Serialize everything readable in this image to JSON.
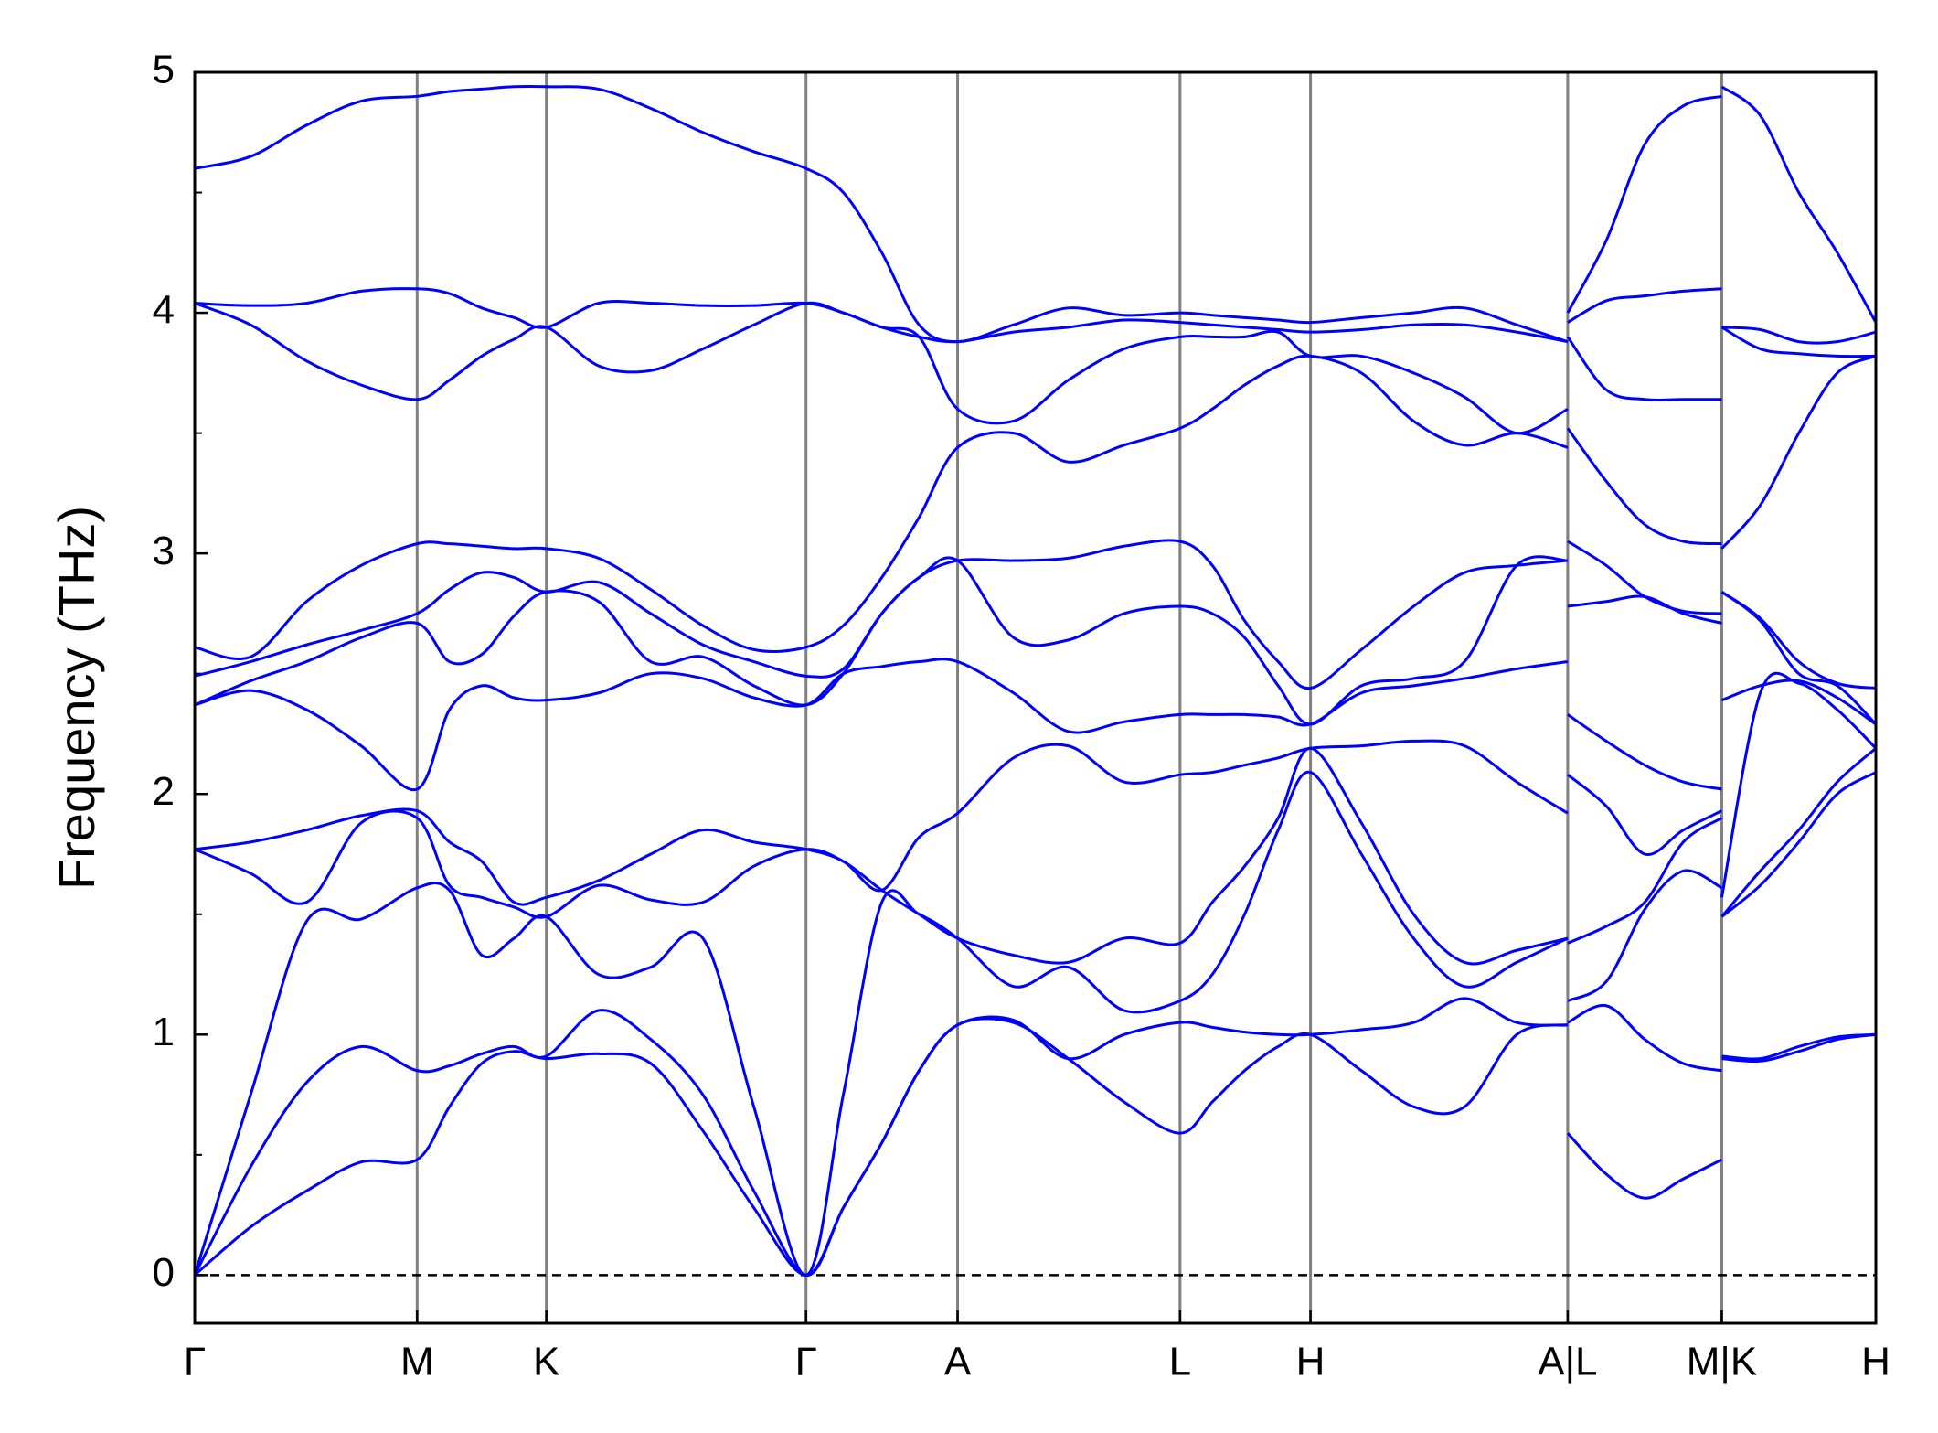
{
  "chart_data": {
    "type": "line",
    "ylabel": "Frequency (THz)",
    "color": "#0000ff",
    "xlim": [
      0,
      13.53
    ],
    "ylim": [
      -0.2,
      5
    ],
    "yticks": [
      0,
      1,
      2,
      3,
      4,
      5
    ],
    "yminorticks": [
      0.5,
      1.5,
      2.5,
      3.5,
      4.5
    ],
    "zero_line": true,
    "grid": true,
    "xticks": [
      {
        "value": 0,
        "label": "Γ"
      },
      {
        "value": 1.79,
        "label": "M"
      },
      {
        "value": 2.83,
        "label": "K"
      },
      {
        "value": 4.92,
        "label": "Γ"
      },
      {
        "value": 6.14,
        "label": "A"
      },
      {
        "value": 7.93,
        "label": "L"
      },
      {
        "value": 8.98,
        "label": "H"
      },
      {
        "value": 11.05,
        "label": "A|L"
      },
      {
        "value": 12.29,
        "label": "M|K"
      },
      {
        "value": 13.53,
        "label": "H"
      }
    ],
    "x": [
      0,
      0.45,
      0.9,
      1.34,
      1.79,
      2.05,
      2.31,
      2.57,
      2.83,
      3.25,
      3.67,
      4.09,
      4.5,
      4.92,
      5.22,
      5.53,
      5.83,
      6.14,
      6.59,
      7.03,
      7.48,
      7.93,
      8.19,
      8.45,
      8.72,
      8.98,
      9.39,
      9.81,
      10.22,
      10.64,
      11.05,
      11.05,
      11.05,
      11.36,
      11.67,
      11.98,
      12.29,
      12.29,
      12.29,
      12.6,
      12.91,
      13.22,
      13.53
    ],
    "series": [
      {
        "values": [
          0,
          0.2,
          0.35,
          0.47,
          0.48,
          0.7,
          0.88,
          0.93,
          0.9,
          0.92,
          0.88,
          0.6,
          0.28,
          0,
          0.28,
          0.55,
          0.85,
          1.04,
          1.05,
          0.9,
          0.72,
          0.59,
          0.72,
          0.85,
          0.95,
          1.0,
          0.85,
          0.7,
          0.7,
          1.0,
          1.04,
          null,
          0.59,
          0.42,
          0.32,
          0.4,
          0.48,
          null,
          0.9,
          0.89,
          0.93,
          0.98,
          1.0
        ]
      },
      {
        "values": [
          0,
          0.45,
          0.8,
          0.95,
          0.85,
          0.87,
          0.92,
          0.95,
          0.91,
          1.1,
          0.98,
          0.75,
          0.35,
          0,
          0.28,
          0.55,
          0.85,
          1.04,
          1.06,
          0.9,
          1.0,
          1.05,
          1.03,
          1.01,
          1.0,
          1.0,
          1.02,
          1.05,
          1.15,
          1.05,
          1.04,
          null,
          1.05,
          1.12,
          0.98,
          0.88,
          0.85,
          null,
          0.91,
          0.9,
          0.95,
          0.99,
          1.0
        ]
      },
      {
        "values": [
          0,
          0.75,
          1.47,
          1.48,
          1.61,
          1.6,
          1.33,
          1.4,
          1.49,
          1.25,
          1.28,
          1.4,
          0.7,
          0,
          0.75,
          1.55,
          1.5,
          1.4,
          1.2,
          1.28,
          1.1,
          1.14,
          1.25,
          1.5,
          1.85,
          2.09,
          1.75,
          1.4,
          1.2,
          1.3,
          1.4,
          null,
          1.14,
          1.22,
          1.52,
          1.68,
          1.61,
          null,
          1.49,
          1.62,
          1.8,
          2.0,
          2.09
        ]
      },
      {
        "values": [
          1.77,
          1.67,
          1.55,
          1.88,
          1.9,
          1.62,
          1.57,
          1.53,
          1.49,
          1.62,
          1.56,
          1.55,
          1.7,
          1.77,
          1.72,
          1.6,
          1.5,
          1.4,
          1.33,
          1.3,
          1.4,
          1.38,
          1.55,
          1.7,
          1.9,
          2.19,
          1.88,
          1.5,
          1.3,
          1.35,
          1.4,
          null,
          1.38,
          1.45,
          1.55,
          1.8,
          1.9,
          null,
          1.49,
          1.68,
          1.85,
          2.05,
          2.19
        ]
      },
      {
        "values": [
          1.77,
          1.8,
          1.85,
          1.91,
          1.93,
          1.8,
          1.72,
          1.55,
          1.57,
          1.64,
          1.75,
          1.85,
          1.8,
          1.77,
          1.72,
          1.6,
          1.82,
          1.92,
          2.15,
          2.2,
          2.05,
          2.08,
          2.09,
          2.12,
          2.15,
          2.19,
          2.2,
          2.22,
          2.2,
          2.05,
          1.92,
          null,
          2.08,
          1.95,
          1.75,
          1.85,
          1.93,
          null,
          1.57,
          2.42,
          2.46,
          2.35,
          2.19
        ]
      },
      {
        "values": [
          2.37,
          2.43,
          2.35,
          2.2,
          2.02,
          2.35,
          2.45,
          2.4,
          2.39,
          2.42,
          2.5,
          2.48,
          2.4,
          2.37,
          2.5,
          2.53,
          2.55,
          2.55,
          2.42,
          2.26,
          2.3,
          2.33,
          2.33,
          2.33,
          2.32,
          2.29,
          2.42,
          2.45,
          2.48,
          2.52,
          2.55,
          null,
          2.33,
          2.22,
          2.12,
          2.05,
          2.02,
          null,
          2.39,
          2.45,
          2.47,
          2.4,
          2.29
        ]
      },
      {
        "values": [
          2.37,
          2.47,
          2.55,
          2.65,
          2.71,
          2.55,
          2.58,
          2.74,
          2.84,
          2.8,
          2.55,
          2.57,
          2.45,
          2.37,
          2.5,
          2.75,
          2.9,
          2.97,
          2.65,
          2.64,
          2.75,
          2.78,
          2.75,
          2.65,
          2.45,
          2.29,
          2.45,
          2.48,
          2.55,
          2.95,
          2.97,
          null,
          2.78,
          2.8,
          2.82,
          2.75,
          2.71,
          null,
          2.84,
          2.72,
          2.5,
          2.45,
          2.29
        ]
      },
      {
        "values": [
          2.49,
          2.55,
          2.62,
          2.68,
          2.75,
          2.85,
          2.92,
          2.9,
          2.84,
          2.88,
          2.75,
          2.62,
          2.55,
          2.49,
          2.52,
          2.75,
          2.9,
          2.97,
          2.97,
          2.98,
          3.03,
          3.05,
          2.95,
          2.72,
          2.55,
          2.44,
          2.6,
          2.78,
          2.92,
          2.95,
          2.97,
          null,
          3.05,
          2.95,
          2.82,
          2.76,
          2.75,
          null,
          2.84,
          2.73,
          2.55,
          2.46,
          2.44
        ]
      },
      {
        "values": [
          2.61,
          2.57,
          2.8,
          2.95,
          3.04,
          3.04,
          3.03,
          3.02,
          3.02,
          2.98,
          2.85,
          2.7,
          2.6,
          2.61,
          2.7,
          2.9,
          3.15,
          3.44,
          3.5,
          3.38,
          3.45,
          3.52,
          3.6,
          3.7,
          3.78,
          3.82,
          3.75,
          3.55,
          3.45,
          3.5,
          3.44,
          null,
          3.52,
          3.3,
          3.12,
          3.05,
          3.04,
          null,
          3.02,
          3.2,
          3.5,
          3.75,
          3.82
        ]
      },
      {
        "values": [
          4.04,
          3.95,
          3.8,
          3.7,
          3.64,
          3.72,
          3.82,
          3.89,
          3.94,
          3.78,
          3.76,
          3.85,
          3.95,
          4.04,
          4.0,
          3.94,
          3.9,
          3.6,
          3.55,
          3.72,
          3.85,
          3.9,
          3.9,
          3.9,
          3.92,
          3.82,
          3.82,
          3.75,
          3.65,
          3.5,
          3.6,
          null,
          3.9,
          3.68,
          3.64,
          3.64,
          3.64,
          null,
          3.94,
          3.85,
          3.83,
          3.82,
          3.82
        ]
      },
      {
        "values": [
          4.04,
          4.03,
          4.04,
          4.09,
          4.1,
          4.08,
          4.02,
          3.98,
          3.94,
          4.04,
          4.04,
          4.03,
          4.03,
          4.04,
          4.0,
          3.94,
          3.9,
          3.88,
          3.92,
          3.94,
          3.97,
          3.96,
          3.95,
          3.94,
          3.93,
          3.92,
          3.93,
          3.95,
          3.95,
          3.92,
          3.88,
          null,
          3.96,
          4.05,
          4.07,
          4.09,
          4.1,
          null,
          3.94,
          3.93,
          3.88,
          3.88,
          3.92
        ]
      },
      {
        "values": [
          4.6,
          4.65,
          4.78,
          4.88,
          4.9,
          4.92,
          4.93,
          4.94,
          4.94,
          4.93,
          4.85,
          4.75,
          4.67,
          4.6,
          4.5,
          4.25,
          3.95,
          3.88,
          3.95,
          4.02,
          3.99,
          4.0,
          3.99,
          3.98,
          3.97,
          3.96,
          3.98,
          4.0,
          4.02,
          3.95,
          3.88,
          null,
          4.0,
          4.3,
          4.7,
          4.86,
          4.9,
          null,
          4.94,
          4.82,
          4.5,
          4.25,
          3.96
        ]
      }
    ]
  }
}
